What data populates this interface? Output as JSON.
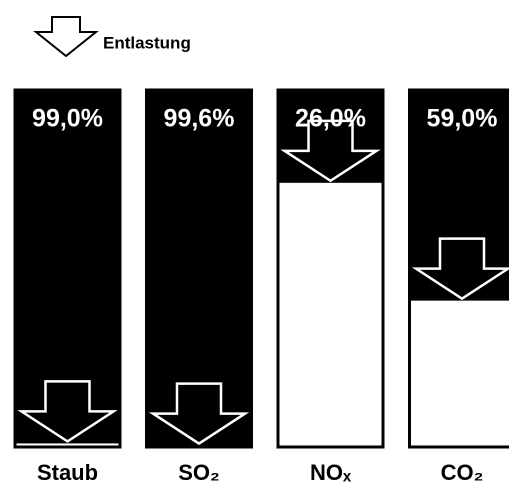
{
  "chart_data": {
    "type": "bar",
    "legend_label": "Entlastung",
    "categories": [
      "Staub",
      "SO₂",
      "NOₓ",
      "CO₂"
    ],
    "values": [
      99.0,
      99.6,
      26.0,
      59.0
    ],
    "value_labels": [
      "99,0%",
      "99,6%",
      "26,0%",
      "59,0%"
    ],
    "ylim": [
      0,
      100
    ],
    "color": "#000000"
  }
}
